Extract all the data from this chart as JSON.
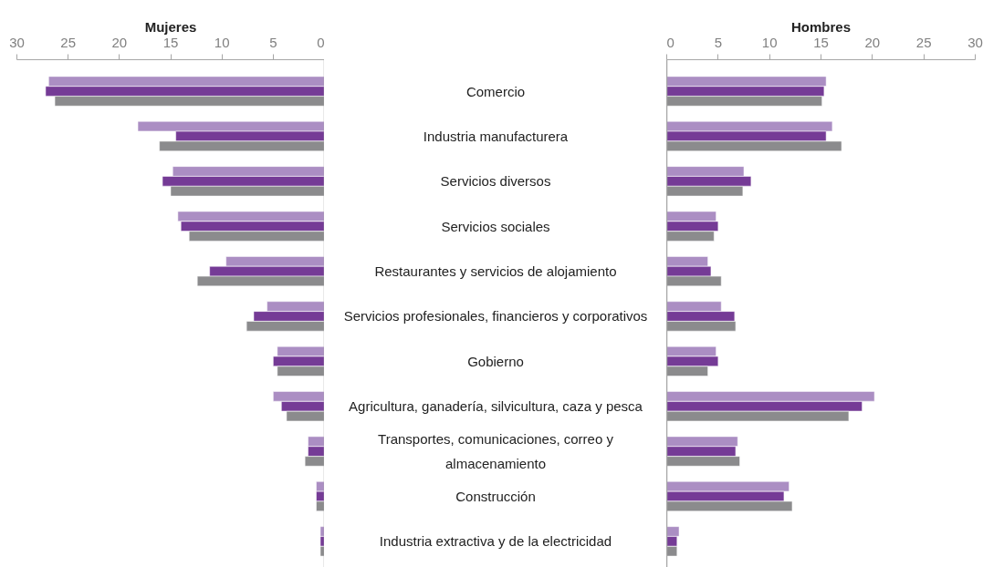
{
  "chart_data": [
    {
      "type": "bar",
      "orientation": "horizontal",
      "title": "Mujeres",
      "categories": [
        "Comercio",
        "Industria manufacturera",
        "Servicios diversos",
        "Servicios sociales",
        "Restaurantes y servicios de alojamiento",
        "Servicios profesionales, financieros y corporativos",
        "Gobierno",
        "Agricultura, ganadería, silvicultura, caza y pesca",
        "Transportes, comunicaciones, correo y almacenamiento",
        "Construcción",
        "Industria extractiva y de la electricidad"
      ],
      "xlim": [
        30,
        0
      ],
      "xticks": [
        30,
        25,
        20,
        15,
        10,
        5,
        0
      ],
      "series": [
        {
          "color": "#ab8ec3",
          "values": [
            26.9,
            18.2,
            14.8,
            14.3,
            9.6,
            5.6,
            4.6,
            5.0,
            1.6,
            0.8,
            0.4
          ]
        },
        {
          "color": "#753b96",
          "values": [
            27.2,
            14.5,
            15.8,
            14.0,
            11.2,
            6.9,
            5.0,
            4.2,
            1.6,
            0.8,
            0.4
          ]
        },
        {
          "color": "#8b8b8d",
          "values": [
            26.3,
            16.1,
            15.0,
            13.2,
            12.4,
            7.6,
            4.6,
            3.7,
            1.9,
            0.8,
            0.4
          ]
        }
      ]
    },
    {
      "type": "bar",
      "orientation": "horizontal",
      "title": "Hombres",
      "tick_labels": "x",
      "categories": [
        "Comercio",
        "Industria manufacturera",
        "Servicios diversos",
        "Servicios sociales",
        "Restaurantes y servicios de alojamiento",
        "Servicios profesionales, financieros y corporativos",
        "Gobierno",
        "Agricultura, ganadería, silvicultura, caza y pesca",
        "Transportes, comunicaciones, correo y almacenamiento",
        "Construcción",
        "Industria extractiva y de la electricidad"
      ],
      "xlim": [
        0,
        30
      ],
      "xticks": [
        0,
        5,
        10,
        15,
        20,
        25,
        30
      ],
      "series": [
        {
          "color": "#ab8ec3",
          "values": [
            15.5,
            16.1,
            7.5,
            4.8,
            4.0,
            5.3,
            4.8,
            20.2,
            6.9,
            11.9,
            1.2
          ]
        },
        {
          "color": "#753b96",
          "values": [
            15.3,
            15.5,
            8.2,
            5.0,
            4.3,
            6.6,
            5.0,
            19.0,
            6.7,
            11.4,
            1.0
          ]
        },
        {
          "color": "#8b8b8d",
          "values": [
            15.1,
            17.0,
            7.4,
            4.6,
            5.3,
            6.7,
            4.0,
            17.7,
            7.1,
            12.2,
            1.0
          ]
        }
      ]
    }
  ]
}
